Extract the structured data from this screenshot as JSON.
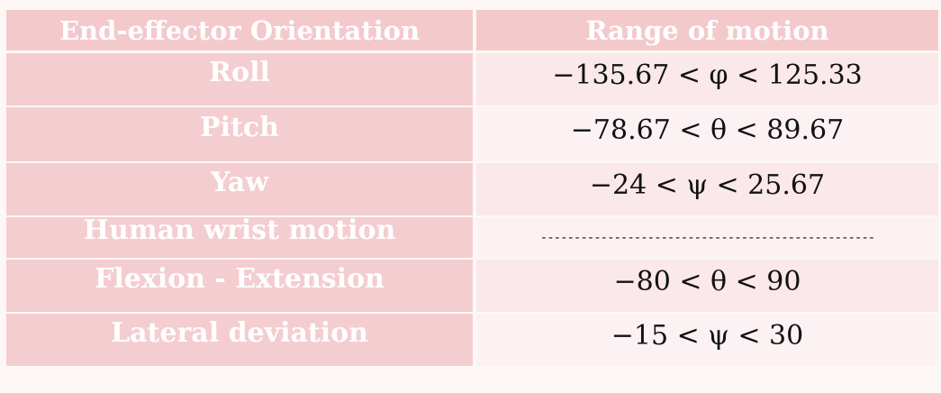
{
  "table": {
    "headers": [
      "End-effector Orientation",
      "Range of motion"
    ],
    "rows": [
      {
        "label": "Roll",
        "value": "−135.67 <  φ < 125.33"
      },
      {
        "label": "Pitch",
        "value": "−78.67 < θ < 89.67"
      },
      {
        "label": "Yaw",
        "value": "−24 < ψ < 25.67"
      },
      {
        "label": "Human wrist motion",
        "value": "--------------------------------------------------"
      },
      {
        "label": "Flexion - Extension",
        "value": "−80 < θ < 90"
      },
      {
        "label": "Lateral deviation",
        "value": "−15 < ψ < 30"
      }
    ]
  }
}
